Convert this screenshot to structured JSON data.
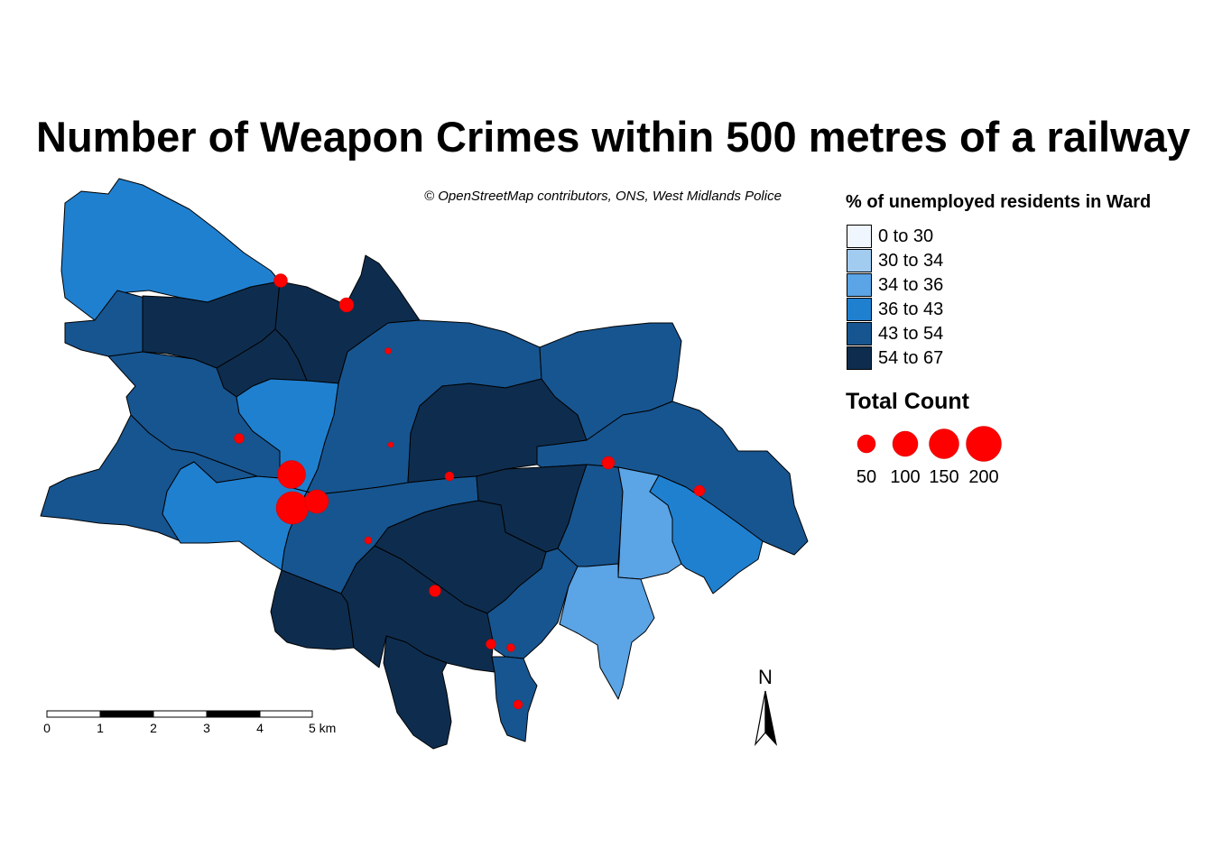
{
  "title": "Number of Weapon Crimes within 500 metres of a railway",
  "attribution": "© OpenStreetMap contributors, ONS, West Midlands Police",
  "fill_legend": {
    "title": "% of unemployed residents in Ward",
    "classes": [
      {
        "label": "0 to 30",
        "color": "#eff6fd"
      },
      {
        "label": "30 to 34",
        "color": "#a2cbf0"
      },
      {
        "label": "34 to 36",
        "color": "#5ba4e5"
      },
      {
        "label": "36 to 43",
        "color": "#2080d0"
      },
      {
        "label": "43 to 54",
        "color": "#175590"
      },
      {
        "label": "54 to 67",
        "color": "#0e2d4e"
      }
    ]
  },
  "size_legend": {
    "title": "Total Count",
    "items": [
      {
        "label": "50",
        "value": 50
      },
      {
        "label": "100",
        "value": 100
      },
      {
        "label": "150",
        "value": 150
      },
      {
        "label": "200",
        "value": 200
      }
    ],
    "color": "#ff0000"
  },
  "scale_bar": {
    "labels": [
      "0",
      "1",
      "2",
      "3",
      "4",
      "5 km"
    ]
  },
  "north_arrow": {
    "label": "N"
  }
}
